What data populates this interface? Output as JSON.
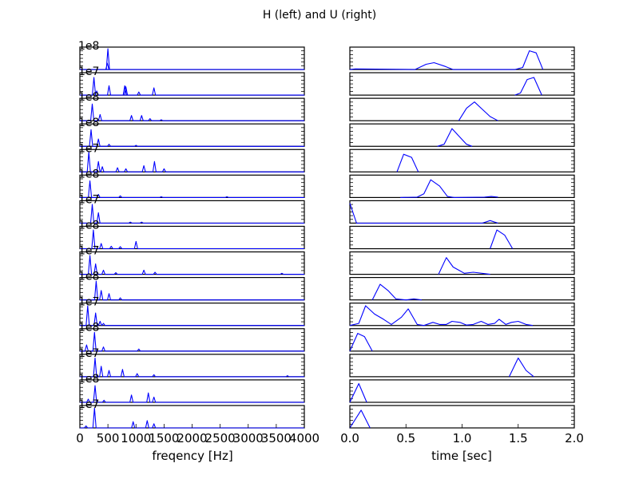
{
  "figure": {
    "title": "H (left) and U (right)"
  },
  "chart_data": [
    {
      "type": "line",
      "name": "H",
      "xlabel": "freqency [Hz]",
      "ylabel": "",
      "xlim": [
        0,
        4000
      ],
      "x_ticks": [
        "0",
        "500",
        "1000",
        "1500",
        "2000",
        "2500",
        "3000",
        "3500",
        "4000"
      ],
      "grid": false,
      "legend": "none",
      "line_color": "#0000ff",
      "panels": [
        {
          "offset_label": "1e8",
          "peaks": [
            [
              500,
              1.0
            ],
            [
              490,
              0.3
            ]
          ]
        },
        {
          "offset_label": "1e7",
          "peaks": [
            [
              250,
              0.85
            ],
            [
              300,
              0.2
            ],
            [
              520,
              0.45
            ],
            [
              800,
              0.45
            ],
            [
              820,
              0.4
            ],
            [
              1050,
              0.15
            ],
            [
              1320,
              0.35
            ]
          ]
        },
        {
          "offset_label": "1e8",
          "peaks": [
            [
              220,
              0.8
            ],
            [
              360,
              0.3
            ],
            [
              920,
              0.25
            ],
            [
              1100,
              0.25
            ],
            [
              1250,
              0.1
            ],
            [
              1450,
              0.05
            ]
          ]
        },
        {
          "offset_label": "1e8",
          "peaks": [
            [
              200,
              0.8
            ],
            [
              330,
              0.35
            ],
            [
              520,
              0.1
            ],
            [
              1000,
              0.05
            ]
          ]
        },
        {
          "offset_label": "1e7",
          "peaks": [
            [
              160,
              0.95
            ],
            [
              330,
              0.5
            ],
            [
              400,
              0.25
            ],
            [
              670,
              0.2
            ],
            [
              820,
              0.15
            ],
            [
              1140,
              0.3
            ],
            [
              1330,
              0.5
            ],
            [
              1500,
              0.15
            ]
          ]
        },
        {
          "offset_label": "1e8",
          "peaks": [
            [
              180,
              0.8
            ],
            [
              330,
              0.15
            ],
            [
              720,
              0.08
            ],
            [
              1450,
              0.04
            ],
            [
              2620,
              0.04
            ]
          ]
        },
        {
          "offset_label": "1e7",
          "peaks": [
            [
              220,
              0.9
            ],
            [
              330,
              0.5
            ],
            [
              900,
              0.05
            ],
            [
              1100,
              0.05
            ]
          ]
        },
        {
          "offset_label": "1e8",
          "peaks": [
            [
              240,
              0.9
            ],
            [
              380,
              0.25
            ],
            [
              560,
              0.12
            ],
            [
              720,
              0.1
            ],
            [
              1000,
              0.35
            ]
          ]
        },
        {
          "offset_label": "1e7",
          "peaks": [
            [
              180,
              0.9
            ],
            [
              280,
              0.5
            ],
            [
              420,
              0.2
            ],
            [
              640,
              0.08
            ],
            [
              1140,
              0.2
            ],
            [
              1340,
              0.1
            ],
            [
              3600,
              0.05
            ]
          ]
        },
        {
          "offset_label": "1e8",
          "peaks": [
            [
              290,
              0.9
            ],
            [
              380,
              0.45
            ],
            [
              520,
              0.3
            ],
            [
              720,
              0.1
            ]
          ]
        },
        {
          "offset_label": "1e7",
          "peaks": [
            [
              140,
              0.95
            ],
            [
              280,
              0.6
            ],
            [
              360,
              0.2
            ],
            [
              420,
              0.1
            ]
          ]
        },
        {
          "offset_label": "1e8",
          "peaks": [
            [
              120,
              0.3
            ],
            [
              260,
              0.9
            ],
            [
              420,
              0.2
            ],
            [
              1050,
              0.1
            ]
          ]
        },
        {
          "offset_label": "1e7",
          "peaks": [
            [
              270,
              0.9
            ],
            [
              380,
              0.5
            ],
            [
              520,
              0.3
            ],
            [
              760,
              0.35
            ],
            [
              1020,
              0.15
            ],
            [
              1320,
              0.1
            ],
            [
              3700,
              0.05
            ]
          ]
        },
        {
          "offset_label": "1e8",
          "peaks": [
            [
              150,
              0.15
            ],
            [
              270,
              0.8
            ],
            [
              430,
              0.1
            ],
            [
              920,
              0.35
            ],
            [
              1220,
              0.45
            ],
            [
              1320,
              0.25
            ]
          ]
        },
        {
          "offset_label": "1e7",
          "peaks": [
            [
              110,
              0.1
            ],
            [
              260,
              0.95
            ],
            [
              950,
              0.3
            ],
            [
              1200,
              0.35
            ],
            [
              1320,
              0.2
            ]
          ]
        }
      ]
    },
    {
      "type": "line",
      "name": "U",
      "xlabel": "time [sec]",
      "ylabel": "",
      "xlim": [
        0.0,
        2.0
      ],
      "x_ticks": [
        "0.0",
        "0.5",
        "1.0",
        "1.5",
        "2.0"
      ],
      "grid": false,
      "legend": "none",
      "line_color": "#0000ff",
      "panels": [
        {
          "points": [
            [
              0.0,
              0.0
            ],
            [
              0.05,
              0.03
            ],
            [
              0.58,
              0.0
            ],
            [
              0.68,
              0.25
            ],
            [
              0.75,
              0.33
            ],
            [
              0.85,
              0.15
            ],
            [
              0.92,
              0.0
            ],
            [
              1.47,
              0.0
            ],
            [
              1.54,
              0.1
            ],
            [
              1.6,
              0.9
            ],
            [
              1.66,
              0.8
            ],
            [
              1.72,
              0.0
            ]
          ]
        },
        {
          "points": [
            [
              1.47,
              0.0
            ],
            [
              1.52,
              0.1
            ],
            [
              1.58,
              0.75
            ],
            [
              1.64,
              0.85
            ],
            [
              1.71,
              0.0
            ]
          ]
        },
        {
          "points": [
            [
              0.97,
              0.0
            ],
            [
              1.04,
              0.6
            ],
            [
              1.11,
              0.9
            ],
            [
              1.18,
              0.55
            ],
            [
              1.25,
              0.2
            ],
            [
              1.32,
              0.0
            ]
          ]
        },
        {
          "points": [
            [
              0.78,
              0.0
            ],
            [
              0.84,
              0.1
            ],
            [
              0.91,
              0.85
            ],
            [
              0.97,
              0.5
            ],
            [
              1.04,
              0.1
            ],
            [
              1.09,
              0.0
            ]
          ]
        },
        {
          "points": [
            [
              0.42,
              0.0
            ],
            [
              0.48,
              0.85
            ],
            [
              0.55,
              0.7
            ],
            [
              0.61,
              0.0
            ]
          ]
        },
        {
          "points": [
            [
              0.45,
              0.0
            ],
            [
              0.6,
              0.02
            ],
            [
              0.66,
              0.18
            ],
            [
              0.72,
              0.85
            ],
            [
              0.8,
              0.55
            ],
            [
              0.87,
              0.05
            ],
            [
              0.93,
              0.0
            ],
            [
              1.2,
              0.02
            ],
            [
              1.26,
              0.05
            ],
            [
              1.32,
              0.02
            ]
          ]
        },
        {
          "points": [
            [
              0.0,
              0.95
            ],
            [
              0.06,
              0.0
            ],
            [
              1.18,
              0.0
            ],
            [
              1.25,
              0.12
            ],
            [
              1.32,
              0.0
            ]
          ]
        },
        {
          "points": [
            [
              1.25,
              0.0
            ],
            [
              1.31,
              0.9
            ],
            [
              1.38,
              0.65
            ],
            [
              1.45,
              0.0
            ]
          ]
        },
        {
          "points": [
            [
              0.79,
              0.0
            ],
            [
              0.86,
              0.8
            ],
            [
              0.92,
              0.35
            ],
            [
              0.97,
              0.2
            ],
            [
              1.02,
              0.05
            ],
            [
              1.1,
              0.1
            ],
            [
              1.25,
              0.0
            ]
          ]
        },
        {
          "points": [
            [
              0.2,
              0.0
            ],
            [
              0.27,
              0.75
            ],
            [
              0.34,
              0.45
            ],
            [
              0.41,
              0.05
            ],
            [
              0.5,
              0.0
            ],
            [
              0.57,
              0.05
            ],
            [
              0.64,
              0.0
            ]
          ]
        },
        {
          "points": [
            [
              0.0,
              0.0
            ],
            [
              0.08,
              0.1
            ],
            [
              0.14,
              0.95
            ],
            [
              0.22,
              0.55
            ],
            [
              0.3,
              0.3
            ],
            [
              0.37,
              0.05
            ],
            [
              0.46,
              0.4
            ],
            [
              0.52,
              0.8
            ],
            [
              0.6,
              0.05
            ],
            [
              0.66,
              0.0
            ],
            [
              0.74,
              0.15
            ],
            [
              0.8,
              0.05
            ],
            [
              0.86,
              0.05
            ],
            [
              0.91,
              0.2
            ],
            [
              0.98,
              0.15
            ],
            [
              1.04,
              0.02
            ],
            [
              1.1,
              0.05
            ],
            [
              1.17,
              0.2
            ],
            [
              1.23,
              0.05
            ],
            [
              1.29,
              0.1
            ],
            [
              1.33,
              0.3
            ],
            [
              1.39,
              0.05
            ],
            [
              1.44,
              0.15
            ],
            [
              1.5,
              0.2
            ],
            [
              1.57,
              0.05
            ],
            [
              1.63,
              0.0
            ]
          ]
        },
        {
          "points": [
            [
              0.0,
              0.0
            ],
            [
              0.07,
              0.85
            ],
            [
              0.13,
              0.7
            ],
            [
              0.2,
              0.0
            ]
          ]
        },
        {
          "points": [
            [
              1.42,
              0.0
            ],
            [
              1.5,
              0.9
            ],
            [
              1.57,
              0.3
            ],
            [
              1.64,
              0.0
            ]
          ]
        },
        {
          "points": [
            [
              0.0,
              0.0
            ],
            [
              0.08,
              0.9
            ],
            [
              0.15,
              0.0
            ]
          ]
        },
        {
          "points": [
            [
              0.0,
              0.0
            ],
            [
              0.1,
              0.85
            ],
            [
              0.18,
              0.0
            ]
          ]
        }
      ]
    }
  ]
}
